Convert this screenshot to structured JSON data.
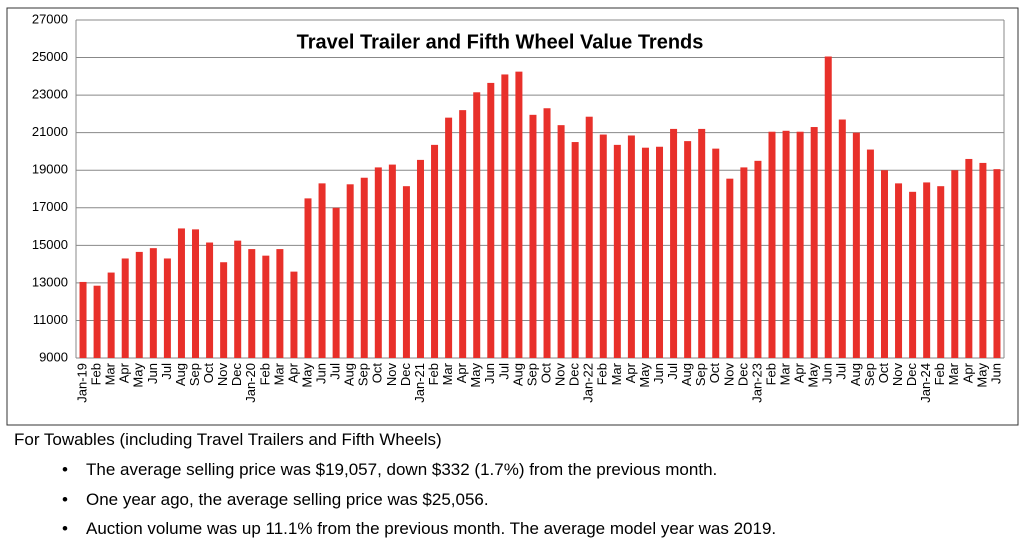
{
  "chart_data": {
    "type": "bar",
    "title": "Travel Trailer and Fifth Wheel Value Trends",
    "categories": [
      "Jan-19",
      "Feb",
      "Mar",
      "Apr",
      "May",
      "Jun",
      "Jul",
      "Aug",
      "Sep",
      "Oct",
      "Nov",
      "Dec",
      "Jan-20",
      "Feb",
      "Mar",
      "Apr",
      "May",
      "Jun",
      "Jul",
      "Aug",
      "Sep",
      "Oct",
      "Nov",
      "Dec",
      "Jan-21",
      "Feb",
      "Mar",
      "Apr",
      "May",
      "Jun",
      "Jul",
      "Aug",
      "Sep",
      "Oct",
      "Nov",
      "Dec",
      "Jan-22",
      "Feb",
      "Mar",
      "Apr",
      "May",
      "Jun",
      "Jul",
      "Aug",
      "Sep",
      "Oct",
      "Nov",
      "Dec",
      "Jan-23",
      "Feb",
      "Mar",
      "Apr",
      "May",
      "Jun",
      "Jul",
      "Aug",
      "Sep",
      "Oct",
      "Nov",
      "Dec",
      "Jan-24",
      "Feb",
      "Mar",
      "Apr",
      "May",
      "Jun"
    ],
    "values": [
      13050,
      12850,
      13550,
      14300,
      14650,
      14850,
      14300,
      15900,
      15850,
      15150,
      14100,
      15250,
      14800,
      14450,
      14800,
      13600,
      17500,
      18300,
      17000,
      18250,
      18600,
      19150,
      19300,
      18150,
      19550,
      20350,
      21800,
      22200,
      23150,
      23650,
      24100,
      24250,
      21950,
      22300,
      21400,
      20500,
      21850,
      20900,
      20350,
      20850,
      20200,
      20250,
      21200,
      20550,
      21200,
      20150,
      18550,
      19150,
      19500,
      21050,
      21100,
      21050,
      21300,
      25056,
      21700,
      21000,
      20100,
      19000,
      18300,
      17850,
      18350,
      18150,
      19000,
      19600,
      19389,
      19057
    ],
    "color": "#e8302a",
    "ylim": [
      9000,
      27000
    ],
    "yticks": [
      9000,
      11000,
      13000,
      15000,
      17000,
      19000,
      21000,
      23000,
      25000,
      27000
    ],
    "grid": true
  },
  "text": {
    "heading": "For Towables (including Travel Trailers and Fifth Wheels)",
    "bullets": [
      "The average selling price was $19,057, down $332 (1.7%) from the previous month.",
      "One year ago, the average selling price was $25,056.",
      "Auction volume was up 11.1% from the previous month.  The average model year was 2019."
    ]
  }
}
